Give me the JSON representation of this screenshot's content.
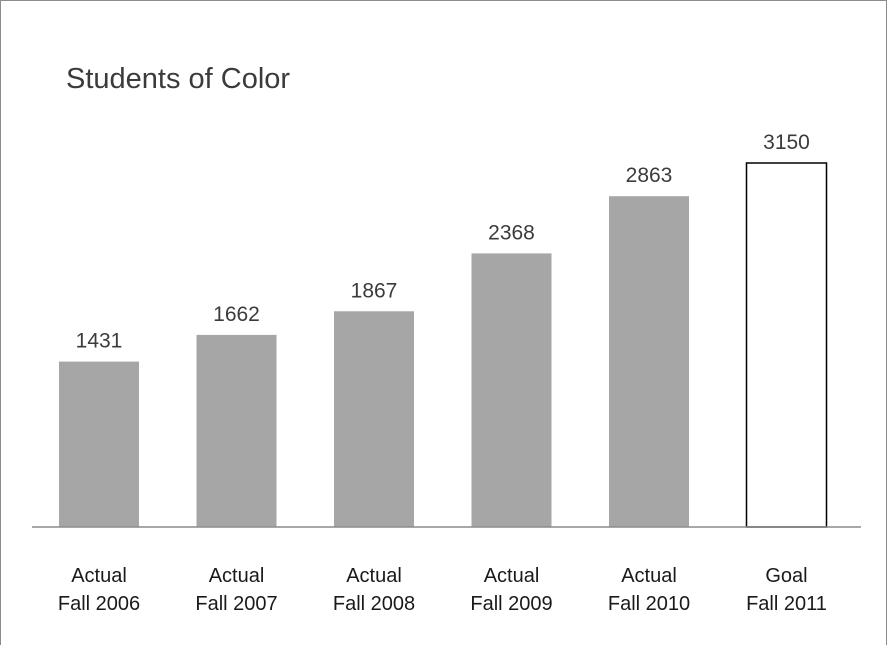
{
  "chart_data": {
    "type": "bar",
    "title": "Students of Color",
    "categories": [
      [
        "Actual",
        "Fall 2006"
      ],
      [
        "Actual",
        "Fall 2007"
      ],
      [
        "Actual",
        "Fall 2008"
      ],
      [
        "Actual",
        "Fall 2009"
      ],
      [
        "Actual",
        "Fall 2010"
      ],
      [
        "Goal",
        "Fall 2011"
      ]
    ],
    "values": [
      1431,
      1662,
      1867,
      2368,
      2863,
      3150
    ],
    "ylim": [
      0,
      3150
    ],
    "grid": false,
    "legend": "none",
    "colors": {
      "actual_bar": "#a6a6a6",
      "goal_bar_fill": "#ffffff",
      "goal_bar_stroke": "#000000",
      "axis": "#8c8c8c",
      "text": "#3b3b3b"
    }
  }
}
